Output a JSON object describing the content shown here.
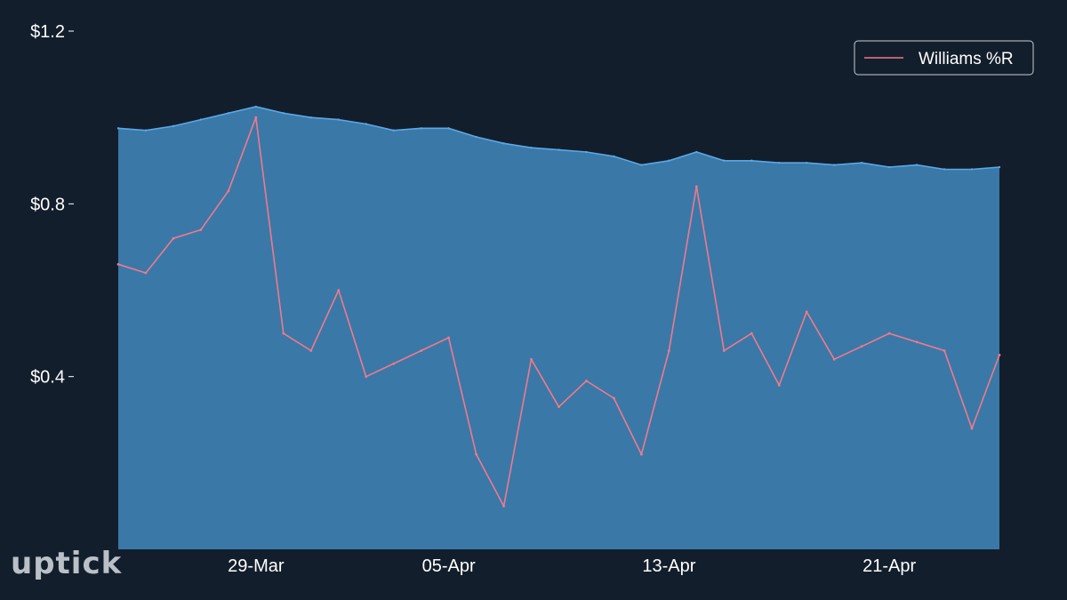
{
  "chart_data": {
    "type": "area",
    "series": [
      {
        "name": "",
        "kind": "area",
        "color": "#5aa8e6",
        "fill": "#3a78a8",
        "x": [
          "2020-03-24",
          "2020-03-25",
          "2020-03-26",
          "2020-03-27",
          "2020-03-28",
          "2020-03-29",
          "2020-03-30",
          "2020-03-31",
          "2020-04-01",
          "2020-04-02",
          "2020-04-03",
          "2020-04-04",
          "2020-04-05",
          "2020-04-06",
          "2020-04-07",
          "2020-04-08",
          "2020-04-09",
          "2020-04-10",
          "2020-04-11",
          "2020-04-12",
          "2020-04-13",
          "2020-04-14",
          "2020-04-15",
          "2020-04-16",
          "2020-04-17",
          "2020-04-18",
          "2020-04-19",
          "2020-04-20",
          "2020-04-21",
          "2020-04-22",
          "2020-04-23",
          "2020-04-24",
          "2020-04-25"
        ],
        "y": [
          0.975,
          0.97,
          0.98,
          0.995,
          1.01,
          1.025,
          1.01,
          1.0,
          0.995,
          0.985,
          0.97,
          0.975,
          0.975,
          0.955,
          0.94,
          0.93,
          0.925,
          0.92,
          0.91,
          0.89,
          0.9,
          0.92,
          0.9,
          0.9,
          0.895,
          0.895,
          0.89,
          0.895,
          0.885,
          0.89,
          0.88,
          0.88,
          0.885
        ]
      },
      {
        "name": "Williams %R",
        "kind": "line",
        "color": "#f07a8a",
        "x": [
          "2020-03-24",
          "2020-03-25",
          "2020-03-26",
          "2020-03-27",
          "2020-03-28",
          "2020-03-29",
          "2020-03-30",
          "2020-03-31",
          "2020-04-01",
          "2020-04-02",
          "2020-04-03",
          "2020-04-04",
          "2020-04-05",
          "2020-04-06",
          "2020-04-07",
          "2020-04-08",
          "2020-04-09",
          "2020-04-10",
          "2020-04-11",
          "2020-04-12",
          "2020-04-13",
          "2020-04-14",
          "2020-04-15",
          "2020-04-16",
          "2020-04-17",
          "2020-04-18",
          "2020-04-19",
          "2020-04-20",
          "2020-04-21",
          "2020-04-22",
          "2020-04-23",
          "2020-04-24",
          "2020-04-25"
        ],
        "y": [
          0.66,
          0.64,
          0.72,
          0.74,
          0.83,
          1.0,
          0.5,
          0.46,
          0.6,
          0.4,
          0.43,
          0.46,
          0.49,
          0.22,
          0.1,
          0.44,
          0.33,
          0.39,
          0.35,
          0.22,
          0.46,
          0.84,
          0.46,
          0.5,
          0.38,
          0.55,
          0.44,
          0.47,
          0.5,
          0.48,
          0.46,
          0.28,
          0.45
        ]
      }
    ],
    "xticks": [
      "29-Mar",
      "05-Apr",
      "13-Apr",
      "21-Apr"
    ],
    "xtick_dates": [
      "2020-03-29",
      "2020-04-05",
      "2020-04-13",
      "2020-04-21"
    ],
    "yticks": [
      "$0.4",
      "$0.8",
      "$1.2"
    ],
    "ytick_values": [
      0.4,
      0.8,
      1.2
    ],
    "ylim": [
      0,
      1.2
    ],
    "xlim": [
      "2020-03-24",
      "2020-04-25"
    ],
    "grid": false,
    "legend": {
      "position": "top-right",
      "entries": [
        "Williams %R"
      ]
    }
  },
  "branding": {
    "logo_text": "uptick"
  },
  "colors": {
    "background": "#131e2c",
    "area_fill": "#3a78a8",
    "area_line": "#5aa8e6",
    "williams_line": "#f07a8a"
  }
}
